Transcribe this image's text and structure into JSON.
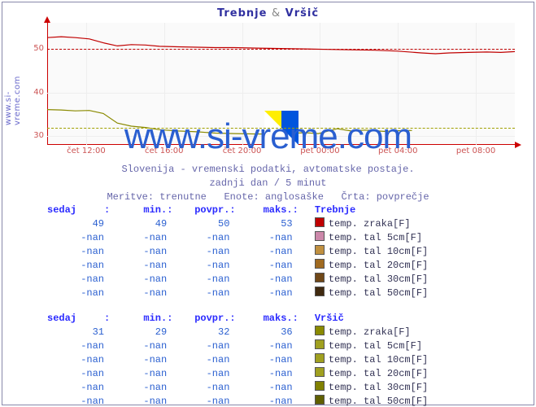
{
  "site_label": "www.si-vreme.com",
  "title_a": "Trebnje",
  "title_sep": "&",
  "title_b": "Vršič",
  "watermark": "www.si-vreme.com",
  "meta_line1": "Slovenija - vremenski podatki, avtomatske postaje.",
  "meta_line2": "zadnji dan / 5 minut",
  "meta_line3a": "Meritve: trenutne",
  "meta_line3b": "Enote: anglosaške",
  "meta_line3c": "Črta: povprečje",
  "chart": {
    "type": "line",
    "background_color": "#fafafa",
    "axis_color": "#cc0000",
    "grid_color": "#eeeeee",
    "ylim": [
      28,
      56
    ],
    "yticks": [
      30,
      40,
      50
    ],
    "xticks": [
      "čet 12:00",
      "čet 16:00",
      "čet 20:00",
      "pet 00:00",
      "pet 04:00",
      "pet 08:00"
    ],
    "series": [
      {
        "name": "Trebnje",
        "color": "#c00000",
        "avg_color": "#c00000",
        "avg": 50,
        "points": [
          [
            0,
            52.6
          ],
          [
            3,
            52.8
          ],
          [
            6,
            52.6
          ],
          [
            9,
            52.3
          ],
          [
            12,
            51.4
          ],
          [
            15,
            50.7
          ],
          [
            18,
            51.0
          ],
          [
            21,
            50.9
          ],
          [
            24,
            50.6
          ],
          [
            28,
            50.5
          ],
          [
            32,
            50.4
          ],
          [
            36,
            50.3
          ],
          [
            40,
            50.3
          ],
          [
            45,
            50.2
          ],
          [
            50,
            50.1
          ],
          [
            55,
            50.0
          ],
          [
            60,
            49.9
          ],
          [
            65,
            49.8
          ],
          [
            70,
            49.7
          ],
          [
            75,
            49.5
          ],
          [
            80,
            49.1
          ],
          [
            83,
            48.9
          ],
          [
            86,
            49.1
          ],
          [
            90,
            49.2
          ],
          [
            94,
            49.3
          ],
          [
            97,
            49.2
          ],
          [
            100,
            49.4
          ]
        ]
      },
      {
        "name": "Vršič",
        "color": "#8a8a00",
        "avg_color": "#a0a000",
        "avg": 32,
        "points": [
          [
            0,
            36.1
          ],
          [
            3,
            36.0
          ],
          [
            6,
            35.8
          ],
          [
            9,
            35.9
          ],
          [
            12,
            35.2
          ],
          [
            15,
            33.0
          ],
          [
            18,
            32.3
          ],
          [
            21,
            32.0
          ],
          [
            24,
            31.5
          ],
          [
            28,
            31.2
          ],
          [
            32,
            31.0
          ],
          [
            36,
            30.7
          ],
          [
            40,
            30.6
          ],
          [
            45,
            30.5
          ],
          [
            50,
            30.5
          ],
          [
            55,
            30.8
          ],
          [
            58,
            30.6
          ],
          [
            62,
            31.7
          ],
          [
            65,
            31.2
          ],
          [
            68,
            31.4
          ],
          [
            72,
            31.1
          ],
          [
            76,
            31.3
          ],
          [
            78,
            31.3
          ]
        ]
      }
    ]
  },
  "headers": {
    "sedaj": "sedaj",
    "min": "min.",
    "povpr": "povpr.",
    "maks": "maks."
  },
  "stations": [
    {
      "name": "Trebnje",
      "rows": [
        {
          "sedaj": "49",
          "min": "49",
          "povpr": "50",
          "maks": "53",
          "swatch": "#c00000",
          "label": "temp. zraka[F]"
        },
        {
          "sedaj": "-nan",
          "min": "-nan",
          "povpr": "-nan",
          "maks": "-nan",
          "swatch": "#cc88aa",
          "label": "temp. tal  5cm[F]"
        },
        {
          "sedaj": "-nan",
          "min": "-nan",
          "povpr": "-nan",
          "maks": "-nan",
          "swatch": "#c09040",
          "label": "temp. tal 10cm[F]"
        },
        {
          "sedaj": "-nan",
          "min": "-nan",
          "povpr": "-nan",
          "maks": "-nan",
          "swatch": "#a06a20",
          "label": "temp. tal 20cm[F]"
        },
        {
          "sedaj": "-nan",
          "min": "-nan",
          "povpr": "-nan",
          "maks": "-nan",
          "swatch": "#704818",
          "label": "temp. tal 30cm[F]"
        },
        {
          "sedaj": "-nan",
          "min": "-nan",
          "povpr": "-nan",
          "maks": "-nan",
          "swatch": "#402a10",
          "label": "temp. tal 50cm[F]"
        }
      ]
    },
    {
      "name": "Vršič",
      "rows": [
        {
          "sedaj": "31",
          "min": "29",
          "povpr": "32",
          "maks": "36",
          "swatch": "#8a8a00",
          "label": "temp. zraka[F]"
        },
        {
          "sedaj": "-nan",
          "min": "-nan",
          "povpr": "-nan",
          "maks": "-nan",
          "swatch": "#a0a020",
          "label": "temp. tal  5cm[F]"
        },
        {
          "sedaj": "-nan",
          "min": "-nan",
          "povpr": "-nan",
          "maks": "-nan",
          "swatch": "#a0a020",
          "label": "temp. tal 10cm[F]"
        },
        {
          "sedaj": "-nan",
          "min": "-nan",
          "povpr": "-nan",
          "maks": "-nan",
          "swatch": "#a0a020",
          "label": "temp. tal 20cm[F]"
        },
        {
          "sedaj": "-nan",
          "min": "-nan",
          "povpr": "-nan",
          "maks": "-nan",
          "swatch": "#808000",
          "label": "temp. tal 30cm[F]"
        },
        {
          "sedaj": "-nan",
          "min": "-nan",
          "povpr": "-nan",
          "maks": "-nan",
          "swatch": "#606000",
          "label": "temp. tal 50cm[F]"
        }
      ]
    }
  ]
}
